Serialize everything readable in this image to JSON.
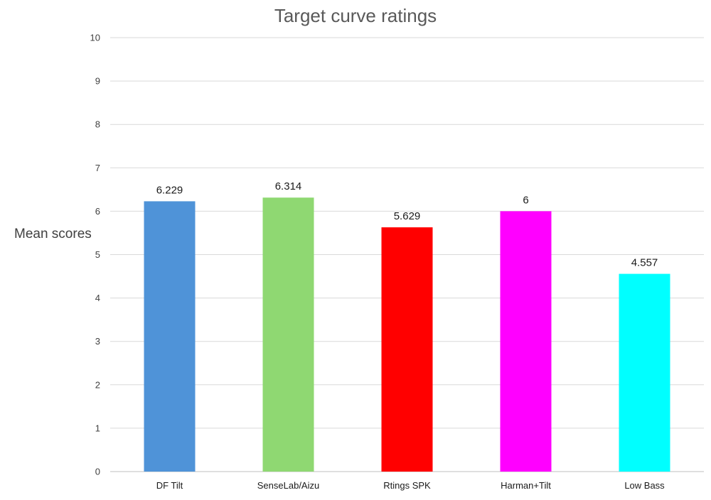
{
  "chart_data": {
    "type": "bar",
    "title": "Target curve ratings",
    "xlabel": "",
    "ylabel": "Mean scores",
    "categories": [
      "DF Tilt",
      "SenseLab/Aizu",
      "Rtings SPK",
      "Harman+Tilt",
      "Low Bass"
    ],
    "values": [
      6.229,
      6.314,
      5.629,
      6,
      4.557
    ],
    "data_labels": [
      "6.229",
      "6.314",
      "5.629",
      "6",
      "4.557"
    ],
    "colors": [
      "#4F93D8",
      "#8FD872",
      "#FF0000",
      "#FF00FF",
      "#00FFFF"
    ],
    "ylim": [
      0,
      10
    ],
    "yticks": [
      0,
      1,
      2,
      3,
      4,
      5,
      6,
      7,
      8,
      9,
      10
    ],
    "grid": true,
    "legend": "none"
  }
}
